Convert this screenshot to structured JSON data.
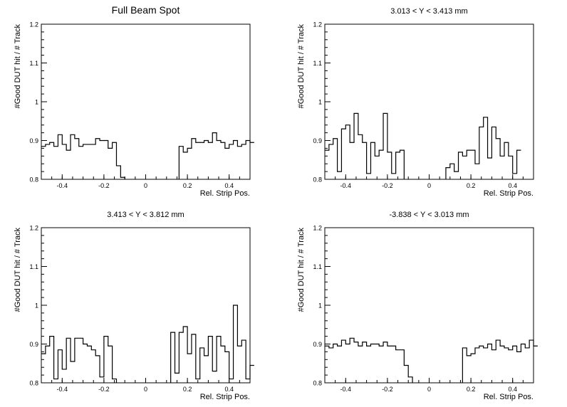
{
  "chart_data": [
    {
      "type": "histogram-step",
      "title": "Full Beam Spot",
      "xlabel": "Rel. Strip Pos.",
      "ylabel": "#Good DUT hit / # Track",
      "xlim": [
        -0.5,
        0.5
      ],
      "ylim": [
        0.8,
        1.2
      ],
      "xticks": [
        -0.4,
        -0.2,
        0,
        0.2,
        0.4
      ],
      "xtick_labels": [
        "-0.4",
        "-0.2",
        "0",
        "0.2",
        "0.4"
      ],
      "yticks": [
        0.8,
        0.9,
        1.0,
        1.1,
        1.2
      ],
      "ytick_labels": [
        "0.8",
        "0.9",
        "1",
        "1.1",
        "1.2"
      ],
      "bin_width": 0.02,
      "values": [
        0.885,
        0.89,
        0.895,
        0.885,
        0.915,
        0.89,
        0.875,
        0.915,
        0.905,
        0.885,
        0.89,
        0.89,
        0.89,
        0.905,
        0.9,
        0.9,
        0.88,
        0.895,
        0.835,
        0.805,
        null,
        null,
        null,
        null,
        null,
        null,
        null,
        null,
        null,
        null,
        null,
        null,
        null,
        0.885,
        0.87,
        0.88,
        0.905,
        0.895,
        0.895,
        0.9,
        0.895,
        0.92,
        0.9,
        0.895,
        0.88,
        0.89,
        0.9,
        0.885,
        0.89,
        0.9,
        0.895
      ]
    },
    {
      "type": "histogram-step",
      "title": "3.013 < Y <  3.413 mm",
      "xlabel": "Rel. Strip Pos.",
      "ylabel": "#Good DUT hit / # Track",
      "xlim": [
        -0.5,
        0.5
      ],
      "ylim": [
        0.8,
        1.2
      ],
      "xticks": [
        -0.4,
        -0.2,
        0,
        0.2,
        0.4
      ],
      "xtick_labels": [
        "-0.4",
        "-0.2",
        "0",
        "0.2",
        "0.4"
      ],
      "yticks": [
        0.8,
        0.9,
        1.0,
        1.1,
        1.2
      ],
      "ytick_labels": [
        "0.8",
        "0.9",
        "1",
        "1.1",
        "1.2"
      ],
      "bin_width": 0.02,
      "values": [
        0.875,
        0.89,
        0.905,
        0.82,
        0.93,
        0.94,
        0.895,
        0.97,
        0.915,
        0.895,
        0.815,
        0.895,
        0.86,
        0.875,
        0.97,
        0.87,
        0.815,
        0.87,
        0.875,
        null,
        null,
        null,
        null,
        null,
        null,
        null,
        null,
        null,
        null,
        0.83,
        0.84,
        0.82,
        0.87,
        0.86,
        0.875,
        0.875,
        0.84,
        0.935,
        0.96,
        0.855,
        0.935,
        0.905,
        0.86,
        0.895,
        0.86,
        0.815,
        0.875
      ]
    },
    {
      "type": "histogram-step",
      "title": "3.413 < Y <  3.812 mm",
      "xlabel": "Rel. Strip Pos.",
      "ylabel": "#Good DUT hit / # Track",
      "xlim": [
        -0.5,
        0.5
      ],
      "ylim": [
        0.8,
        1.2
      ],
      "xticks": [
        -0.4,
        -0.2,
        0,
        0.2,
        0.4
      ],
      "xtick_labels": [
        "-0.4",
        "-0.2",
        "0",
        "0.2",
        "0.4"
      ],
      "yticks": [
        0.8,
        0.9,
        1.0,
        1.1,
        1.2
      ],
      "ytick_labels": [
        "0.8",
        "0.9",
        "1",
        "1.1",
        "1.2"
      ],
      "bin_width": 0.02,
      "values": [
        0.875,
        0.895,
        0.92,
        0.81,
        0.885,
        0.835,
        0.915,
        0.855,
        0.915,
        0.915,
        0.9,
        0.895,
        0.885,
        0.87,
        0.815,
        0.92,
        0.895,
        0.81,
        null,
        null,
        null,
        null,
        null,
        null,
        null,
        null,
        null,
        null,
        null,
        null,
        null,
        0.93,
        0.825,
        0.93,
        0.945,
        0.875,
        0.925,
        0.81,
        0.89,
        0.87,
        0.92,
        0.83,
        0.92,
        0.895,
        0.88,
        0.81,
        1.0,
        0.895,
        0.91,
        0.81,
        0.845
      ]
    },
    {
      "type": "histogram-step",
      "title": "-3.838 < Y <  3.013 mm",
      "xlabel": "Rel. Strip Pos.",
      "ylabel": "#Good DUT hit / # Track",
      "xlim": [
        -0.5,
        0.5
      ],
      "ylim": [
        0.8,
        1.2
      ],
      "xticks": [
        -0.4,
        -0.2,
        0,
        0.2,
        0.4
      ],
      "xtick_labels": [
        "-0.4",
        "-0.2",
        "0",
        "0.2",
        "0.4"
      ],
      "yticks": [
        0.8,
        0.9,
        1.0,
        1.1,
        1.2
      ],
      "ytick_labels": [
        "0.8",
        "0.9",
        "1",
        "1.1",
        "1.2"
      ],
      "bin_width": 0.02,
      "values": [
        0.895,
        0.89,
        0.9,
        0.895,
        0.91,
        0.9,
        0.915,
        0.905,
        0.895,
        0.905,
        0.895,
        0.9,
        0.9,
        0.895,
        0.905,
        0.895,
        0.895,
        0.885,
        0.885,
        0.845,
        0.815,
        null,
        null,
        null,
        null,
        null,
        null,
        null,
        null,
        null,
        null,
        null,
        null,
        0.89,
        0.87,
        0.875,
        0.89,
        0.895,
        0.89,
        0.9,
        0.885,
        0.91,
        0.895,
        0.89,
        0.885,
        0.895,
        0.88,
        0.9,
        0.89,
        0.91,
        0.895
      ]
    }
  ]
}
